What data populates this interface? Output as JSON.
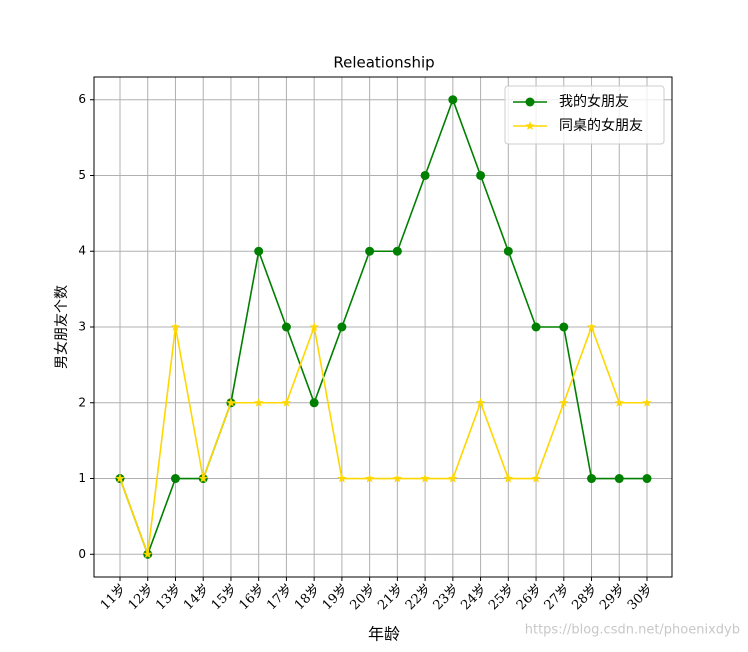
{
  "chart_data": {
    "type": "line",
    "title": "Releationship",
    "x_label": "年龄",
    "y_label": "男女朋友个数",
    "categories": [
      "11岁",
      "12岁",
      "13岁",
      "14岁",
      "15岁",
      "16岁",
      "17岁",
      "18岁",
      "19岁",
      "20岁",
      "21岁",
      "22岁",
      "23岁",
      "24岁",
      "25岁",
      "26岁",
      "27岁",
      "28岁",
      "29岁",
      "30岁"
    ],
    "series": [
      {
        "name": "我的女朋友",
        "color": "#008000",
        "marker": "o",
        "values": [
          1,
          0,
          1,
          1,
          2,
          4,
          3,
          2,
          3,
          4,
          4,
          5,
          6,
          5,
          4,
          3,
          3,
          1,
          1,
          1
        ]
      },
      {
        "name": "同桌的女朋友",
        "color": "#ffd700",
        "marker": "*",
        "values": [
          1,
          0,
          3,
          1,
          2,
          2,
          2,
          3,
          1,
          1,
          1,
          1,
          1,
          2,
          1,
          1,
          2,
          3,
          2,
          2
        ]
      }
    ],
    "ylim": [
      -0.3,
      6.3
    ],
    "yticks": [
      0,
      1,
      2,
      3,
      4,
      5,
      6
    ],
    "grid": true,
    "legend": "upper right",
    "watermark": "https://blog.csdn.net/phoenixdyb"
  }
}
